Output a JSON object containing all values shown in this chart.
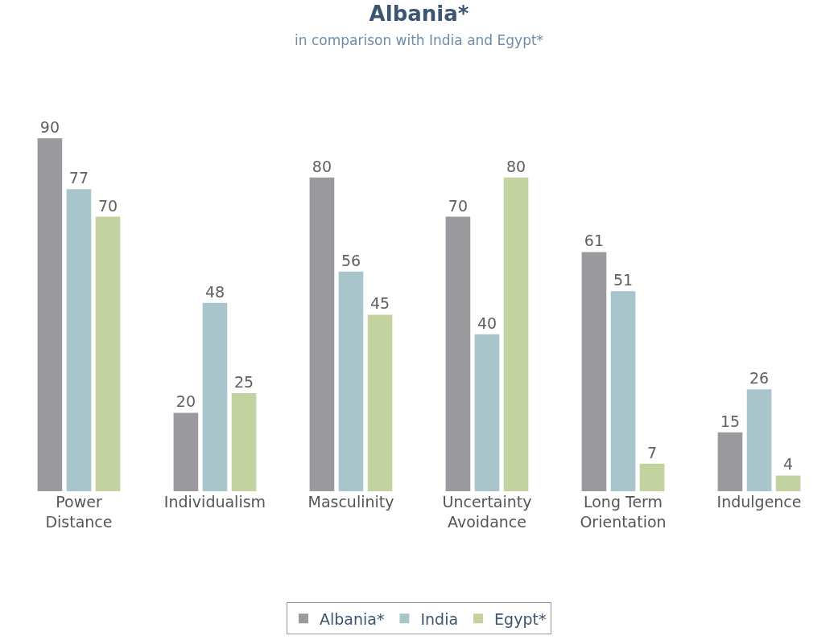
{
  "chart_data": {
    "type": "bar",
    "title": "Albania*",
    "subtitle": "in comparison with India and Egypt*",
    "categories": [
      "Power Distance",
      "Individualism",
      "Masculinity",
      "Uncertainty Avoidance",
      "Long Term Orientation",
      "Indulgence"
    ],
    "series": [
      {
        "name": "Albania*",
        "color": "#9a999e",
        "values": [
          90,
          20,
          80,
          70,
          61,
          15
        ]
      },
      {
        "name": "India",
        "color": "#a9c5cc",
        "values": [
          77,
          48,
          56,
          40,
          51,
          26
        ]
      },
      {
        "name": "Egypt*",
        "color": "#c2d3a0",
        "values": [
          70,
          25,
          45,
          80,
          7,
          4
        ]
      }
    ],
    "data_labels": true,
    "legend": "bottom"
  }
}
